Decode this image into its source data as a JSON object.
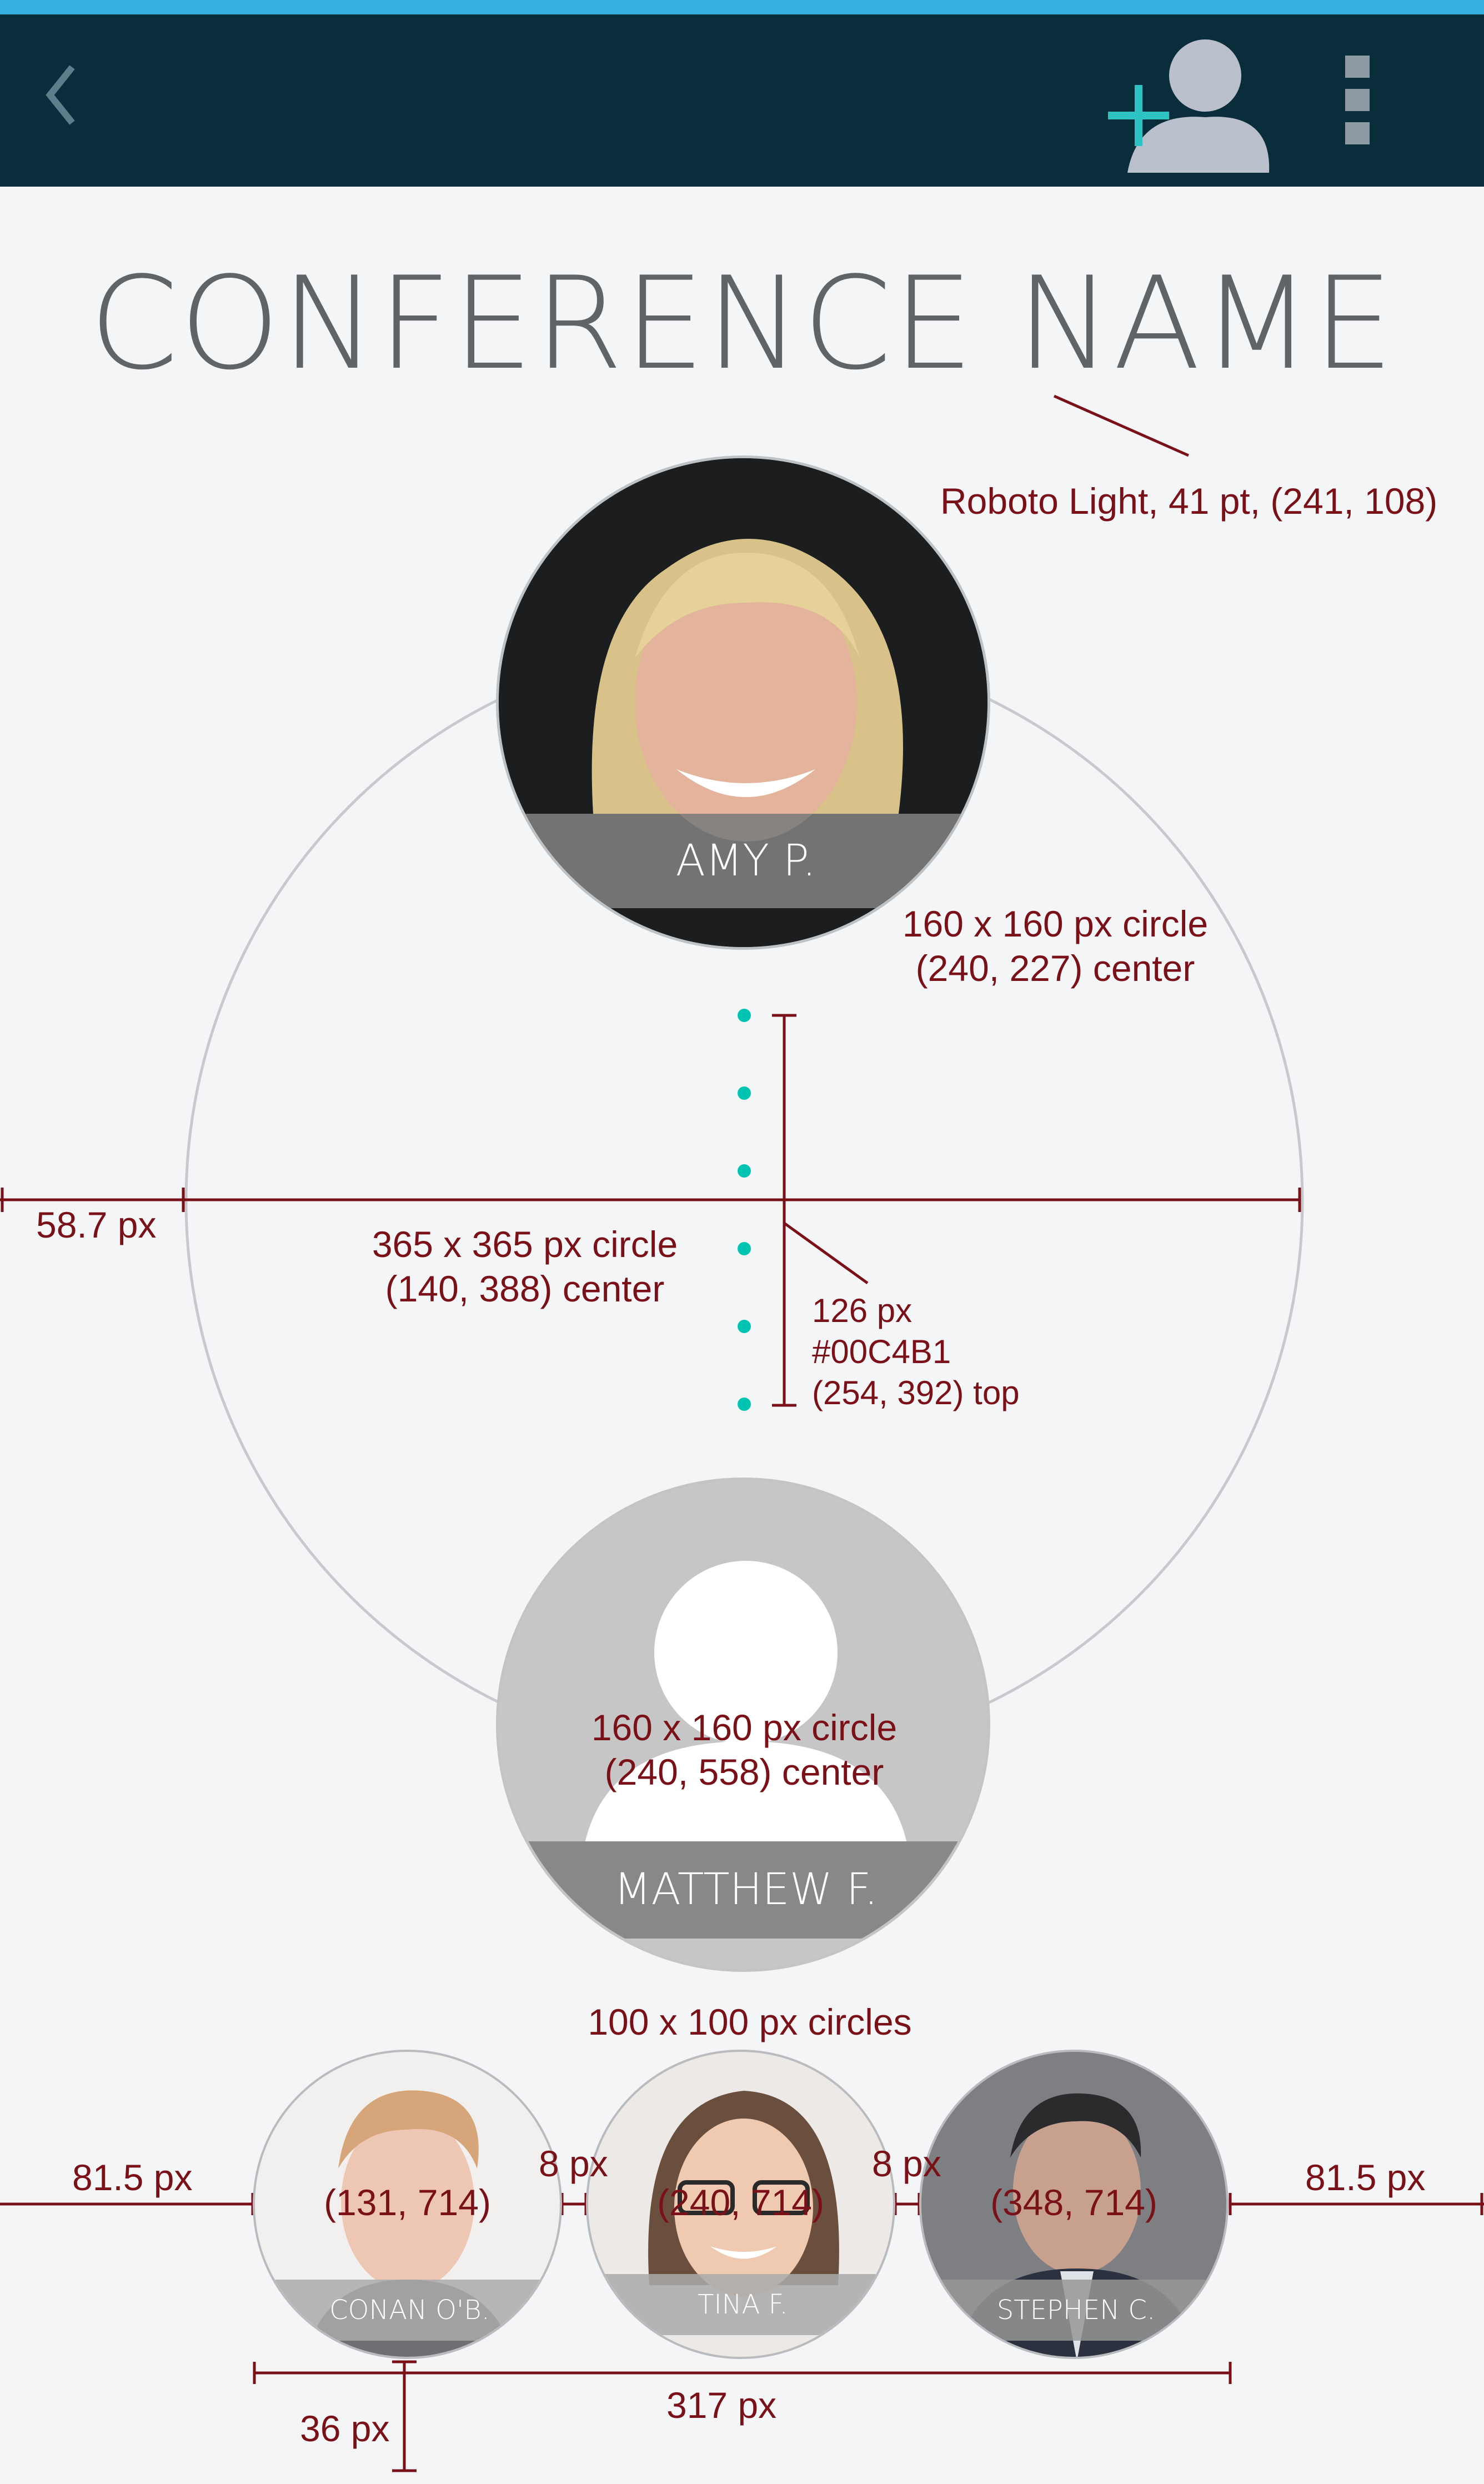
{
  "colors": {
    "accent_teal": "#00C4B1",
    "app_bar": "#0a2d3b",
    "top_line": "#35aee0",
    "annotation": "#7a1118",
    "background": "#f4f5f7"
  },
  "app_bar": {
    "back_icon": "chevron-left-icon",
    "add_contact_icon": "add-person-icon",
    "overflow_icon": "overflow-menu-icon"
  },
  "title": "CONFERENCE NAME",
  "speakers": {
    "top": {
      "name": "AMY P."
    },
    "bottom": {
      "name": "MATTHEW F."
    },
    "small": [
      {
        "name": "CONAN O'B."
      },
      {
        "name": "TINA F."
      },
      {
        "name": "STEPHEN C."
      }
    ]
  },
  "annotations": {
    "title_spec": "Roboto Light, 41 pt, (241, 108)",
    "top_circle_size": "160 x 160 px circle",
    "top_circle_center": "(240, 227) center",
    "big_circle_size": "365 x 365 px circle",
    "big_circle_center": "(140, 388) center",
    "left_margin": "58.7 px",
    "dots_length": "126 px",
    "dots_color": "#00C4B1",
    "dots_top": "(254, 392) top",
    "bottom_circle_size": "160 x 160 px circle",
    "bottom_circle_center": "(240, 558) center",
    "small_circles": "100 x 100 px circles",
    "small_left_margin": "81.5 px",
    "small_right_margin": "81.5 px",
    "gap_1": "8 px",
    "gap_2": "8 px",
    "small_center_1": "(131, 714)",
    "small_center_2": "(240, 714)",
    "small_center_3": "(348, 714)",
    "total_width": "317 px",
    "bottom_margin": "36 px"
  }
}
